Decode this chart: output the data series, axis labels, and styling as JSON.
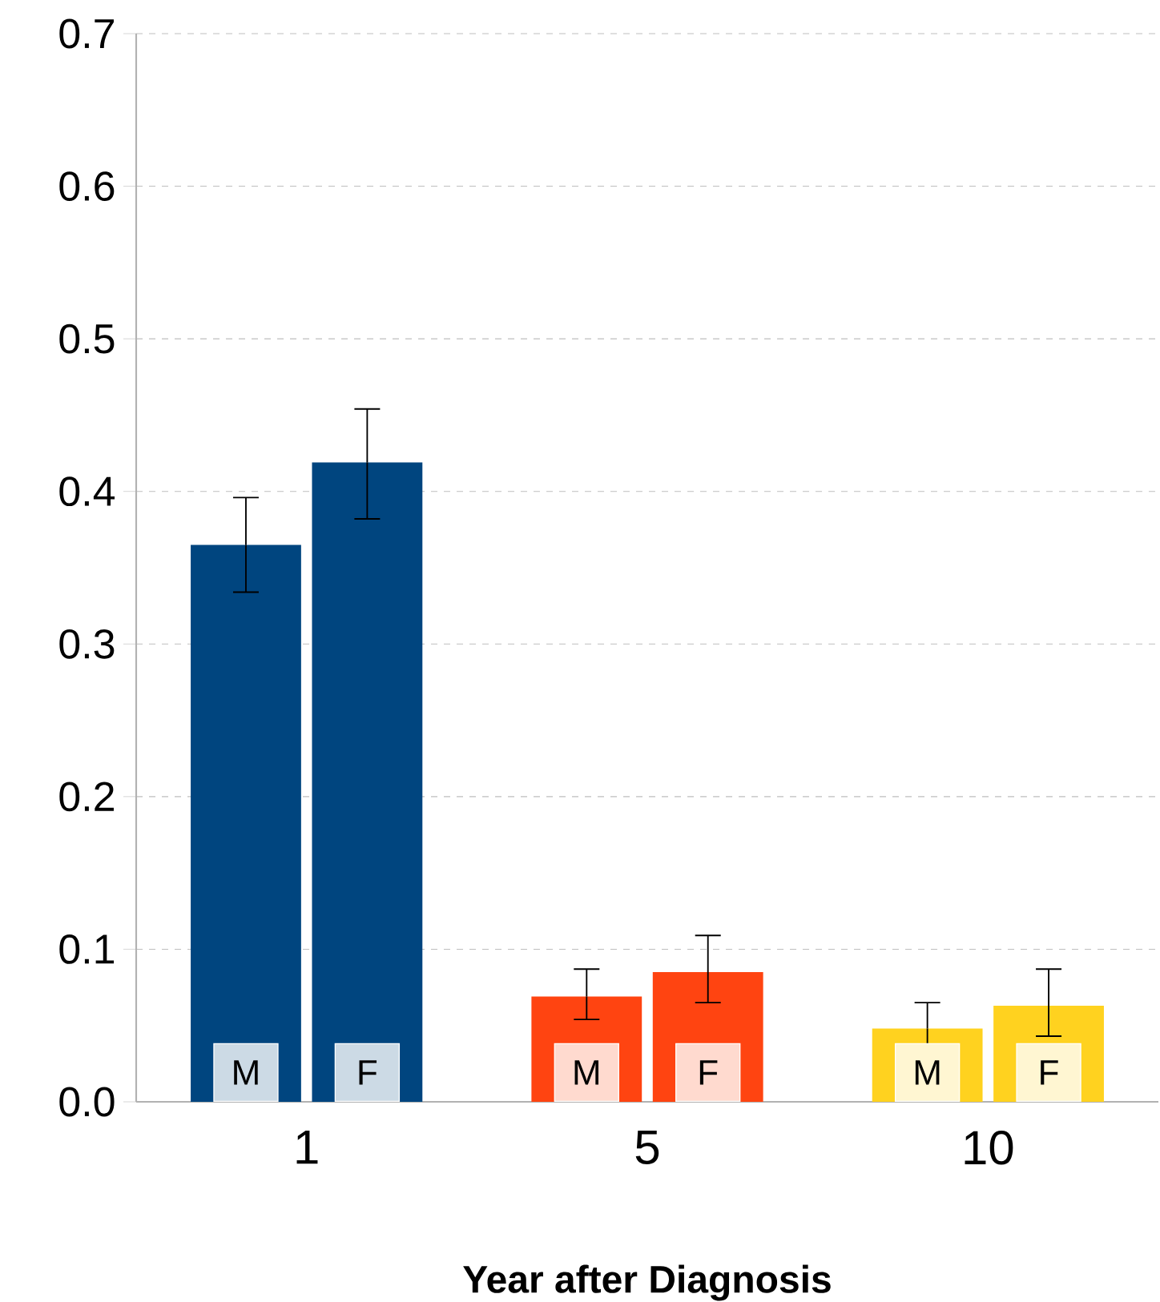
{
  "chart_data": {
    "type": "bar",
    "xlabel": "Year after Diagnosis",
    "categories": [
      "1",
      "5",
      "10"
    ],
    "series": [
      {
        "name": "M",
        "colors": [
          "#00457f",
          "#ff4411",
          "#ffd21f"
        ],
        "values": [
          0.365,
          0.069,
          0.048
        ],
        "errors": [
          [
            0.334,
            0.396
          ],
          [
            0.054,
            0.087
          ],
          [
            0.035,
            0.065
          ]
        ]
      },
      {
        "name": "F",
        "colors": [
          "#00457f",
          "#ff4411",
          "#ffd21f"
        ],
        "values": [
          0.419,
          0.085,
          0.063
        ],
        "errors": [
          [
            0.382,
            0.454
          ],
          [
            0.065,
            0.109
          ],
          [
            0.043,
            0.087
          ]
        ]
      }
    ],
    "ylim": [
      0,
      0.7
    ],
    "yticks": [
      {
        "value": 0,
        "label": "0.0"
      },
      0.1,
      0.2,
      0.3,
      0.4,
      0.5,
      0.6,
      0.7
    ],
    "grid": "y"
  }
}
